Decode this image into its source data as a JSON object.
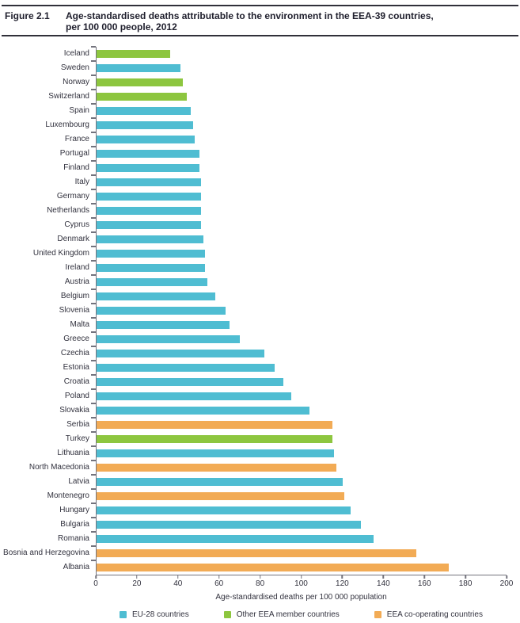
{
  "header": {
    "figure_label": "Figure 2.1",
    "title_line1": "Age-standardised deaths attributable to the environment in the EEA-39 countries,",
    "title_line2": "per 100 000 people, 2012"
  },
  "chart_data": {
    "type": "bar",
    "orientation": "horizontal",
    "title": "Age-standardised deaths attributable to the environment in the EEA-39 countries, per 100 000 people, 2012",
    "xlabel": "Age-standardised deaths per 100 000 population",
    "xlim": [
      0,
      200
    ],
    "x_ticks": [
      0,
      20,
      40,
      60,
      80,
      100,
      120,
      140,
      160,
      180,
      200
    ],
    "grid": false,
    "legend_position": "bottom",
    "legend": [
      {
        "key": "eu28",
        "label": "EU-28 countries",
        "color": "#4FBDD2"
      },
      {
        "key": "other_eea",
        "label": "Other EEA member countries",
        "color": "#8DC63F"
      },
      {
        "key": "coop",
        "label": "EEA co-operating countries",
        "color": "#F2AB55"
      }
    ],
    "bars": [
      {
        "country": "Iceland",
        "value": 36,
        "group": "other_eea"
      },
      {
        "country": "Sweden",
        "value": 41,
        "group": "eu28"
      },
      {
        "country": "Norway",
        "value": 42,
        "group": "other_eea"
      },
      {
        "country": "Switzerland",
        "value": 44,
        "group": "other_eea"
      },
      {
        "country": "Spain",
        "value": 46,
        "group": "eu28"
      },
      {
        "country": "Luxembourg",
        "value": 47,
        "group": "eu28"
      },
      {
        "country": "France",
        "value": 48,
        "group": "eu28"
      },
      {
        "country": "Portugal",
        "value": 50,
        "group": "eu28"
      },
      {
        "country": "Finland",
        "value": 50,
        "group": "eu28"
      },
      {
        "country": "Italy",
        "value": 51,
        "group": "eu28"
      },
      {
        "country": "Germany",
        "value": 51,
        "group": "eu28"
      },
      {
        "country": "Netherlands",
        "value": 51,
        "group": "eu28"
      },
      {
        "country": "Cyprus",
        "value": 51,
        "group": "eu28"
      },
      {
        "country": "Denmark",
        "value": 52,
        "group": "eu28"
      },
      {
        "country": "United Kingdom",
        "value": 53,
        "group": "eu28"
      },
      {
        "country": "Ireland",
        "value": 53,
        "group": "eu28"
      },
      {
        "country": "Austria",
        "value": 54,
        "group": "eu28"
      },
      {
        "country": "Belgium",
        "value": 58,
        "group": "eu28"
      },
      {
        "country": "Slovenia",
        "value": 63,
        "group": "eu28"
      },
      {
        "country": "Malta",
        "value": 65,
        "group": "eu28"
      },
      {
        "country": "Greece",
        "value": 70,
        "group": "eu28"
      },
      {
        "country": "Czechia",
        "value": 82,
        "group": "eu28"
      },
      {
        "country": "Estonia",
        "value": 87,
        "group": "eu28"
      },
      {
        "country": "Croatia",
        "value": 91,
        "group": "eu28"
      },
      {
        "country": "Poland",
        "value": 95,
        "group": "eu28"
      },
      {
        "country": "Slovakia",
        "value": 104,
        "group": "eu28"
      },
      {
        "country": "Serbia",
        "value": 115,
        "group": "coop"
      },
      {
        "country": "Turkey",
        "value": 115,
        "group": "other_eea"
      },
      {
        "country": "Lithuania",
        "value": 116,
        "group": "eu28"
      },
      {
        "country": "North Macedonia",
        "value": 117,
        "group": "coop"
      },
      {
        "country": "Latvia",
        "value": 120,
        "group": "eu28"
      },
      {
        "country": "Montenegro",
        "value": 121,
        "group": "coop"
      },
      {
        "country": "Hungary",
        "value": 124,
        "group": "eu28"
      },
      {
        "country": "Bulgaria",
        "value": 129,
        "group": "eu28"
      },
      {
        "country": "Romania",
        "value": 135,
        "group": "eu28"
      },
      {
        "country": "Bosnia and Herzegovina",
        "value": 156,
        "group": "coop"
      },
      {
        "country": "Albania",
        "value": 172,
        "group": "coop"
      }
    ]
  }
}
